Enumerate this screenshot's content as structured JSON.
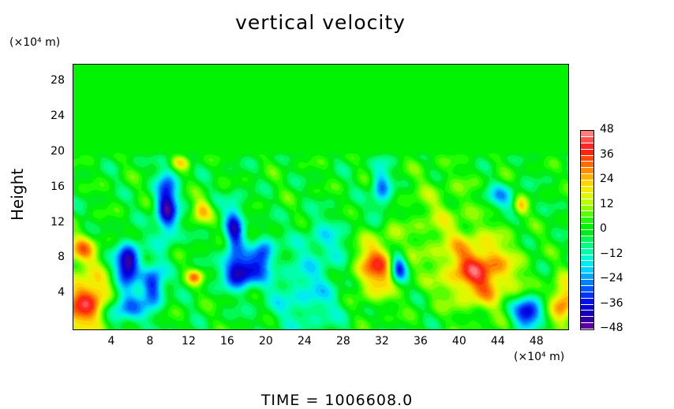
{
  "chart_data": {
    "type": "heatmap",
    "title": "vertical velocity",
    "xlabel": "",
    "xunit": "(×10⁴ m)",
    "ylabel": "Height",
    "yunit": "(×10⁴ m)",
    "xlim": [
      0,
      51.2
    ],
    "ylim": [
      0,
      30
    ],
    "xticks": [
      4,
      8,
      12,
      16,
      20,
      24,
      28,
      32,
      36,
      40,
      44,
      48
    ],
    "yticks": [
      4,
      8,
      12,
      16,
      20,
      24,
      28
    ],
    "colorbar": {
      "min": -48,
      "max": 48,
      "step": 3,
      "ticks": [
        48,
        36,
        24,
        12,
        0,
        -12,
        -24,
        -36,
        -48
      ]
    },
    "background_value": 0,
    "active_layer_top": 20,
    "features": [
      {
        "x": 1.5,
        "y": 3,
        "v": 42,
        "sx": 1.8,
        "sy": 2.2
      },
      {
        "x": 0.8,
        "y": 9,
        "v": 25,
        "sx": 1.2,
        "sy": 1.2
      },
      {
        "x": 5.6,
        "y": 7.5,
        "v": -48,
        "sx": 0.9,
        "sy": 1.6
      },
      {
        "x": 5,
        "y": 2.5,
        "v": -30,
        "sx": 1.6,
        "sy": 1.4
      },
      {
        "x": 9.6,
        "y": 14,
        "v": -42,
        "sx": 0.8,
        "sy": 2.6
      },
      {
        "x": 8.2,
        "y": 5,
        "v": -36,
        "sx": 0.8,
        "sy": 1.6
      },
      {
        "x": 17.3,
        "y": 6.5,
        "v": -44,
        "sx": 1.2,
        "sy": 1.2
      },
      {
        "x": 16.6,
        "y": 11,
        "v": -34,
        "sx": 0.7,
        "sy": 2.5
      },
      {
        "x": 19.6,
        "y": 8.5,
        "v": -30,
        "sx": 0.8,
        "sy": 1.4
      },
      {
        "x": 31.2,
        "y": 7,
        "v": 33,
        "sx": 1.6,
        "sy": 2.4
      },
      {
        "x": 33.6,
        "y": 7,
        "v": -38,
        "sx": 0.6,
        "sy": 1.3
      },
      {
        "x": 42,
        "y": 6.5,
        "v": 36,
        "sx": 2.5,
        "sy": 2.6
      },
      {
        "x": 47,
        "y": 2,
        "v": -42,
        "sx": 1.1,
        "sy": 1.1
      },
      {
        "x": 50.6,
        "y": 3,
        "v": 32,
        "sx": 1,
        "sy": 1.8
      },
      {
        "x": 13.2,
        "y": 13.5,
        "v": 22,
        "sx": 0.7,
        "sy": 0.9
      },
      {
        "x": 12.5,
        "y": 6,
        "v": 25,
        "sx": 0.6,
        "sy": 0.6
      },
      {
        "x": 31.8,
        "y": 16,
        "v": -26,
        "sx": 0.7,
        "sy": 2
      },
      {
        "x": 44.2,
        "y": 15,
        "v": -20,
        "sx": 1.2,
        "sy": 1
      },
      {
        "x": 46.2,
        "y": 14,
        "v": 20,
        "sx": 0.5,
        "sy": 0.8
      },
      {
        "x": 24,
        "y": 4,
        "v": -15,
        "sx": 3,
        "sy": 3
      },
      {
        "x": 38,
        "y": 12,
        "v": 10,
        "sx": 3,
        "sy": 4
      },
      {
        "x": 11,
        "y": 19,
        "v": 18,
        "sx": 0.7,
        "sy": 0.6
      },
      {
        "x": 26,
        "y": 10,
        "v": -12,
        "sx": 2,
        "sy": 2
      }
    ]
  },
  "footer": {
    "time_label": "TIME = 1006608.0"
  }
}
